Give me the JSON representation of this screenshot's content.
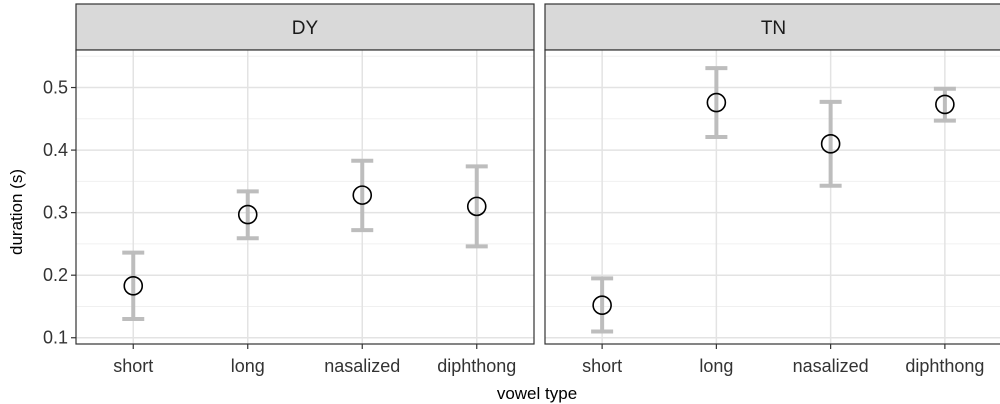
{
  "chart_data": {
    "type": "scatter",
    "error_bars": true,
    "xlabel": "vowel type",
    "ylabel": "duration (s)",
    "categories": [
      "short",
      "long",
      "nasalized",
      "diphthong"
    ],
    "ylim": [
      0.09,
      0.56
    ],
    "yticks": [
      0.1,
      0.2,
      0.3,
      0.4,
      0.5
    ],
    "yticks_labels": [
      "0.1",
      "0.2",
      "0.3",
      "0.4",
      "0.5"
    ],
    "grid": true,
    "marker": "open-circle",
    "errorbar_color": "#bdbdbd",
    "strip_color": "#d9d9d9",
    "facets": [
      {
        "name": "DY",
        "points": [
          {
            "category": "short",
            "mean": 0.183,
            "lower": 0.13,
            "upper": 0.236
          },
          {
            "category": "long",
            "mean": 0.297,
            "lower": 0.259,
            "upper": 0.334
          },
          {
            "category": "nasalized",
            "mean": 0.328,
            "lower": 0.272,
            "upper": 0.383
          },
          {
            "category": "diphthong",
            "mean": 0.31,
            "lower": 0.246,
            "upper": 0.374
          }
        ]
      },
      {
        "name": "TN",
        "points": [
          {
            "category": "short",
            "mean": 0.152,
            "lower": 0.11,
            "upper": 0.195
          },
          {
            "category": "long",
            "mean": 0.476,
            "lower": 0.421,
            "upper": 0.531
          },
          {
            "category": "nasalized",
            "mean": 0.41,
            "lower": 0.343,
            "upper": 0.477
          },
          {
            "category": "diphthong",
            "mean": 0.473,
            "lower": 0.447,
            "upper": 0.498
          }
        ]
      }
    ]
  }
}
